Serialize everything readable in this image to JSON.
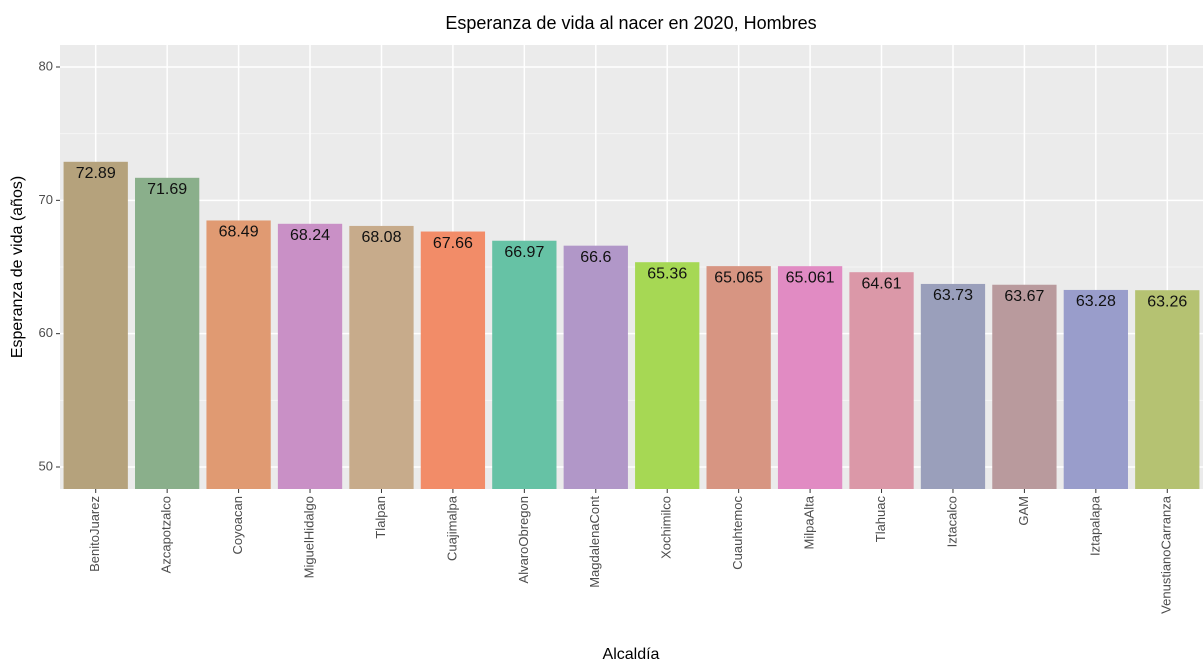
{
  "chart_data": {
    "type": "bar",
    "title": "Esperanza de vida al nacer en 2020, Hombres",
    "x_label": "Alcaldía",
    "y_label": "Esperanza de vida (años)",
    "categories": [
      "BenitoJuarez",
      "Azcapotzalco",
      "Coyoacan",
      "MiguelHidalgo",
      "Tlalpan",
      "Cuajimalpa",
      "AlvaroObregon",
      "MagdalenaCont",
      "Xochimilco",
      "Cuauhtemoc",
      "MilpaAlta",
      "Tlahuac",
      "Iztacalco",
      "GAM",
      "Iztapalapa",
      "VenustianoCarranza"
    ],
    "values": [
      72.89,
      71.69,
      68.49,
      68.24,
      68.08,
      67.66,
      66.97,
      66.6,
      65.36,
      65.065,
      65.061,
      64.61,
      63.73,
      63.67,
      63.28,
      63.26
    ],
    "colors": [
      "#b5a27c",
      "#8aaf8b",
      "#e09a72",
      "#c990c6",
      "#c7ab8b",
      "#f28c68",
      "#66c2a5",
      "#b197c8",
      "#a6d854",
      "#d79582",
      "#e18bc3",
      "#db98a8",
      "#9a9fbb",
      "#b99a9d",
      "#999dcb",
      "#b5c272"
    ],
    "ylim": [
      48.35,
      81.65
    ],
    "yticks": [
      50,
      60,
      70,
      80
    ],
    "grid": true
  }
}
